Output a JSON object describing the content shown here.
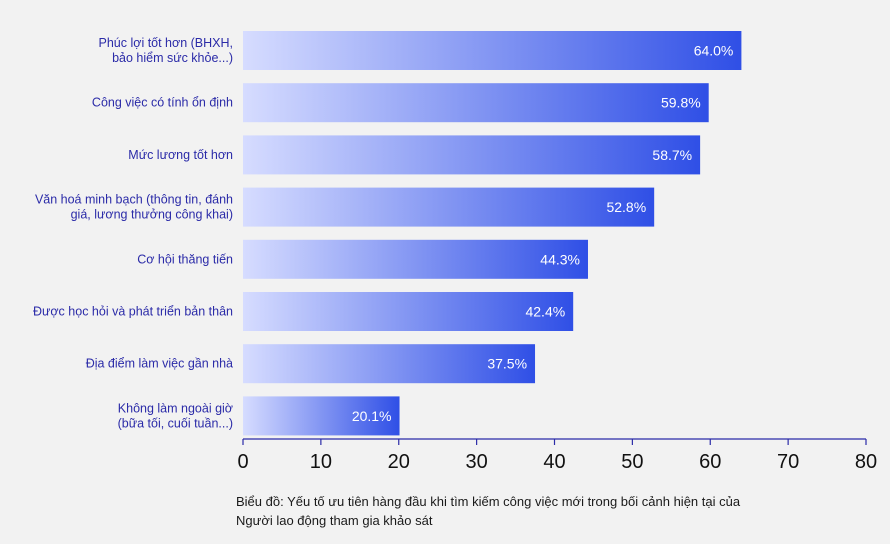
{
  "chart_data": {
    "type": "bar",
    "orientation": "horizontal",
    "categories": [
      [
        "Phúc lợi tốt hơn (BHXH,",
        "bảo hiểm sức khỏe...)"
      ],
      [
        "Công việc có tính ổn định"
      ],
      [
        "Mức lương tốt hơn"
      ],
      [
        "Văn hoá minh bạch (thông tin, đánh",
        "giá, lương thưởng công khai)"
      ],
      [
        "Cơ hội thăng tiến"
      ],
      [
        "Được học hỏi và phát triển bản thân"
      ],
      [
        "Địa điểm làm việc gần nhà"
      ],
      [
        "Không làm ngoài giờ",
        "(bữa tối, cuối tuần...)"
      ]
    ],
    "values": [
      64.0,
      59.8,
      58.7,
      52.8,
      44.3,
      42.4,
      37.5,
      20.1
    ],
    "value_labels": [
      "64.0%",
      "59.8%",
      "58.7%",
      "52.8%",
      "44.3%",
      "42.4%",
      "37.5%",
      "20.1%"
    ],
    "xlim": [
      0,
      80
    ],
    "xticks": [
      0,
      10,
      20,
      30,
      40,
      50,
      60,
      70,
      80
    ],
    "grid": false,
    "colors": {
      "bar_start": "#d6dcff",
      "bar_end": "#2f4fe6",
      "axis": "#2b2ba8",
      "category_text": "#2b2ba8"
    }
  },
  "caption": {
    "line1": "Biểu đồ: Yếu tố ưu tiên hàng đầu khi tìm kiếm công việc mới trong bối cảnh hiện tại của",
    "line2": "Người lao động tham gia khảo sát"
  }
}
